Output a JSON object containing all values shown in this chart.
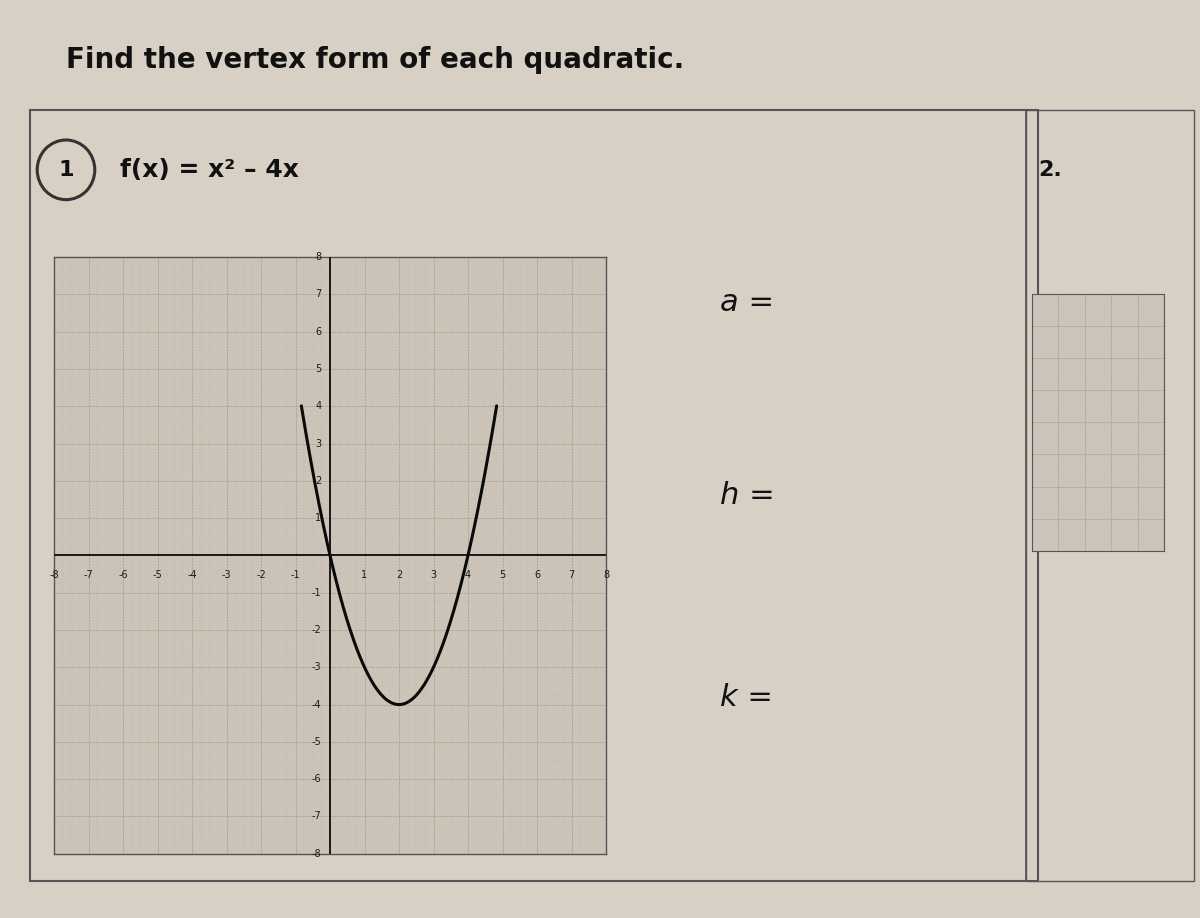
{
  "title": "Find the vertex form of each quadratic.",
  "problem_number": "1",
  "function_label": "f(x) = x² – 4x",
  "problem2_label": "2.",
  "annotation_a": "a =",
  "annotation_h": "h =",
  "annotation_k": "k =",
  "outer_bg": "#c8bfb0",
  "paper_color": "#d8d0c4",
  "grid_bg": "#ccc4b8",
  "grid_line_color": "#9a9080",
  "grid_minor_color": "#b0a898",
  "axis_color": "#1a1a1a",
  "curve_color": "#0a0a0a",
  "text_color": "#111111",
  "border_color": "#555555",
  "xmin": -8,
  "xmax": 8,
  "ymin": -8,
  "ymax": 8,
  "curve_xmin": -0.8,
  "curve_xmax": 5.0,
  "tick_fontsize": 7,
  "annotation_fontsize": 22
}
